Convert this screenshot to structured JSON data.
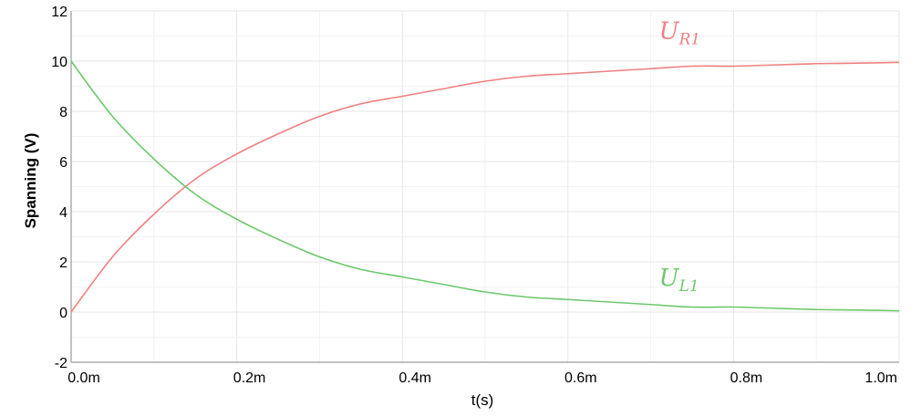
{
  "chart_data": {
    "type": "line",
    "xlabel": "t(s)",
    "ylabel": "Spanning (V)",
    "xlim": [
      0,
      1.0
    ],
    "ylim": [
      -2,
      12
    ],
    "x_ticks": [
      0,
      0.2,
      0.4,
      0.6,
      0.8,
      1.0
    ],
    "x_tick_labels": [
      "0.0m",
      "0.2m",
      "0.4m",
      "0.6m",
      "0.8m",
      "1.0m"
    ],
    "y_ticks": [
      -2,
      0,
      2,
      4,
      6,
      8,
      10,
      12
    ],
    "y_tick_labels": [
      "-2",
      "0",
      "2",
      "4",
      "6",
      "8",
      "10",
      "12"
    ],
    "grid": true,
    "series": [
      {
        "name": "U_R1",
        "label_main": "U",
        "label_sub": "R1",
        "color": "#f08080",
        "x": [
          0,
          0.05,
          0.1,
          0.15,
          0.2,
          0.25,
          0.3,
          0.35,
          0.4,
          0.45,
          0.5,
          0.55,
          0.6,
          0.65,
          0.7,
          0.75,
          0.8,
          0.85,
          0.9,
          0.95,
          1.0
        ],
        "y": [
          0,
          2.2,
          3.9,
          5.3,
          6.3,
          7.1,
          7.8,
          8.3,
          8.6,
          8.9,
          9.2,
          9.4,
          9.5,
          9.6,
          9.7,
          9.8,
          9.8,
          9.85,
          9.9,
          9.92,
          9.95
        ]
      },
      {
        "name": "U_L1",
        "label_main": "U",
        "label_sub": "L1",
        "color": "#6cc96c",
        "x": [
          0,
          0.05,
          0.1,
          0.15,
          0.2,
          0.25,
          0.3,
          0.35,
          0.4,
          0.45,
          0.5,
          0.55,
          0.6,
          0.65,
          0.7,
          0.75,
          0.8,
          0.85,
          0.9,
          0.95,
          1.0
        ],
        "y": [
          10,
          7.8,
          6.1,
          4.7,
          3.7,
          2.9,
          2.2,
          1.7,
          1.4,
          1.1,
          0.8,
          0.6,
          0.5,
          0.4,
          0.3,
          0.2,
          0.2,
          0.15,
          0.1,
          0.08,
          0.05
        ]
      }
    ]
  }
}
